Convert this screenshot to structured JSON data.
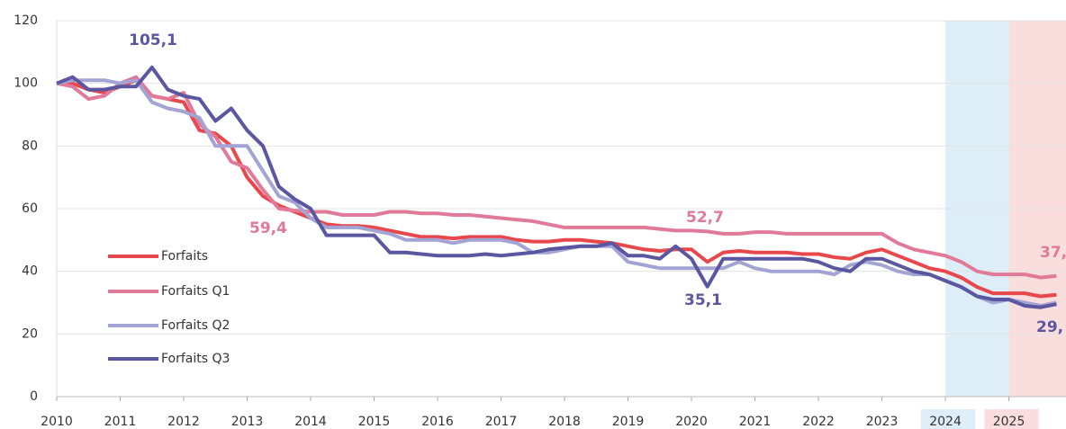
{
  "chart_data": {
    "type": "line",
    "x": [
      2010,
      2010.25,
      2010.5,
      2010.75,
      2011,
      2011.25,
      2011.5,
      2011.75,
      2012,
      2012.25,
      2012.5,
      2012.75,
      2013,
      2013.25,
      2013.5,
      2013.75,
      2014,
      2014.25,
      2014.5,
      2014.75,
      2015,
      2015.25,
      2015.5,
      2015.75,
      2016,
      2016.25,
      2016.5,
      2016.75,
      2017,
      2017.25,
      2017.5,
      2017.75,
      2018,
      2018.25,
      2018.5,
      2018.75,
      2019,
      2019.25,
      2019.5,
      2019.75,
      2020,
      2020.25,
      2020.5,
      2020.75,
      2021,
      2021.25,
      2021.5,
      2021.75,
      2022,
      2022.25,
      2022.5,
      2022.75,
      2023,
      2023.25,
      2023.5,
      2023.75,
      2024,
      2024.25,
      2024.5,
      2024.75,
      2025,
      2025.25,
      2025.5,
      2025.75
    ],
    "series": [
      {
        "name": "Forfaits",
        "color": "#e8474b",
        "values": [
          100,
          100,
          98,
          97,
          99,
          101,
          96,
          95,
          94,
          85,
          84,
          80,
          70,
          64,
          61,
          59,
          57,
          55,
          54.5,
          54.5,
          54,
          53,
          52,
          51,
          51,
          50.5,
          51,
          51,
          51,
          50,
          49.5,
          49.5,
          50,
          50,
          49.5,
          49,
          48,
          47,
          46.5,
          47,
          47,
          43,
          46,
          46.5,
          46,
          46,
          46,
          45.5,
          45.5,
          44.5,
          44,
          46,
          47,
          45,
          43,
          41,
          40,
          38,
          35,
          33,
          33,
          33,
          32,
          32.5
        ]
      },
      {
        "name": "Forfaits Q1",
        "color": "#e07a98",
        "values": [
          100,
          99,
          95,
          96,
          100,
          102,
          96,
          95,
          97,
          87,
          83,
          75,
          73,
          66,
          60,
          59.4,
          59,
          59,
          58,
          58,
          58,
          59,
          59,
          58.5,
          58.5,
          58,
          58,
          57.5,
          57,
          56.5,
          56,
          55,
          54,
          54,
          54,
          54,
          54,
          54,
          53.5,
          53,
          53,
          52.7,
          52,
          52,
          52.5,
          52.5,
          52,
          52,
          52,
          52,
          52,
          52,
          52,
          49,
          47,
          46,
          45,
          43,
          40,
          39,
          39,
          39,
          38,
          38.5
        ]
      },
      {
        "name": "Forfaits Q2",
        "color": "#a3a3d4",
        "values": [
          100,
          101,
          101,
          101,
          100,
          101,
          94,
          92,
          91,
          89,
          80,
          80,
          80,
          72,
          64,
          62,
          57,
          54,
          54,
          54,
          53,
          52,
          50,
          50,
          50,
          49,
          50,
          50,
          50,
          49,
          46,
          46,
          47,
          48,
          48,
          48,
          43,
          42,
          41,
          41,
          41,
          41,
          41,
          43,
          41,
          40,
          40,
          40,
          40,
          39,
          42,
          43,
          42,
          40,
          39,
          39,
          37,
          35,
          32,
          30,
          31,
          30,
          29,
          30
        ]
      },
      {
        "name": "Forfaits Q3",
        "color": "#5b56a0",
        "values": [
          100,
          102,
          98,
          98,
          99,
          99,
          105.1,
          98,
          96,
          95,
          88,
          92,
          85,
          80,
          67,
          63,
          60,
          51.5,
          51.5,
          51.5,
          51.5,
          46,
          46,
          45.5,
          45,
          45,
          45,
          45.5,
          45,
          45.5,
          46,
          47,
          47.5,
          48,
          48,
          49,
          45,
          45,
          44,
          48,
          44,
          35.1,
          44,
          44,
          44,
          44,
          44,
          44,
          43,
          41,
          40,
          44,
          44,
          42,
          40,
          39,
          37,
          35,
          32,
          31,
          31,
          29,
          28.5,
          29.5
        ]
      }
    ],
    "xlim": [
      2010,
      2025.9
    ],
    "xticks": [
      2010,
      2011,
      2012,
      2013,
      2014,
      2015,
      2016,
      2017,
      2018,
      2019,
      2020,
      2021,
      2022,
      2023,
      2024,
      2025
    ],
    "ylim": [
      0,
      120
    ],
    "yticks": [
      0,
      20,
      40,
      60,
      80,
      100,
      120
    ],
    "grid": true,
    "legend": "left",
    "bands": [
      {
        "from": 2024,
        "to": 2025,
        "color": "#ddeef8"
      },
      {
        "from": 2025,
        "to": 2025.9,
        "color": "#fadede"
      }
    ],
    "annotations": [
      {
        "text": "105,1",
        "color": "#5b56a0"
      },
      {
        "text": "59,4",
        "color": "#e07a98"
      },
      {
        "text": "52,7",
        "color": "#e07a98"
      },
      {
        "text": "35,1",
        "color": "#5b56a0"
      },
      {
        "text": "37,",
        "color": "#e07a98"
      },
      {
        "text": "29,",
        "color": "#5b56a0"
      }
    ]
  }
}
